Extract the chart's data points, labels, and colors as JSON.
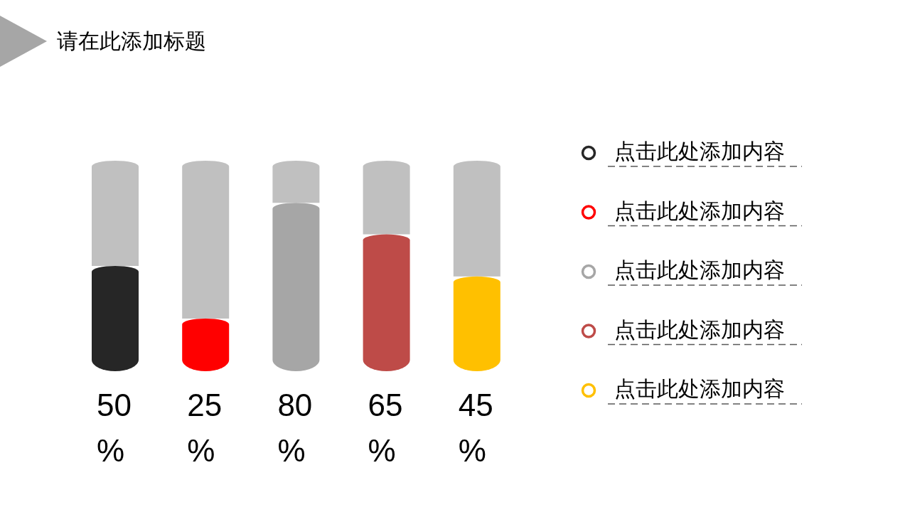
{
  "chart_data": {
    "type": "bar",
    "title": "请在此添加标题",
    "stacked": true,
    "categories": [
      null,
      null,
      null,
      null,
      null
    ],
    "series": [
      {
        "colors": [
          "#262626",
          "#ff0000",
          "#a6a6a6",
          "#be4b48",
          "#ffc000"
        ],
        "values": [
          50,
          25,
          80,
          65,
          45
        ],
        "value_labels": [
          "50%",
          "25%",
          "80%",
          "65%",
          "45%"
        ]
      },
      {
        "color": "#c0c0c0",
        "values": [
          50,
          75,
          20,
          35,
          55
        ]
      }
    ],
    "annotations": [
      "点击此处添加内容",
      "点击此处添加内容",
      "点击此处添加内容",
      "点击此处添加内容",
      "点击此处添加内容"
    ],
    "ylim": [
      0,
      100
    ],
    "tick_labels": false
  }
}
